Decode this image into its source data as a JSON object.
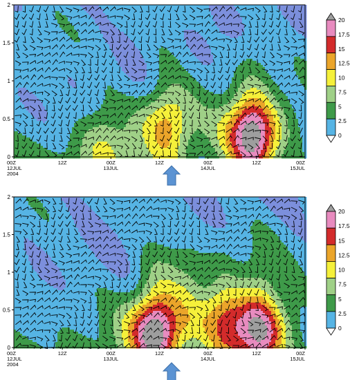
{
  "chart_data": [
    {
      "type": "heatmap",
      "title": "",
      "xlabel": "",
      "ylabel": "",
      "x_range_hours": [
        0,
        72
      ],
      "ylim": [
        0,
        2
      ],
      "x_tick_labels": [
        "00Z\n12JUL\n2004",
        "12Z",
        "00Z\n13JUL",
        "12Z",
        "00Z\n14JUL",
        "12Z",
        "00Z\n15JUL"
      ],
      "x_ticks_hours": [
        0,
        12,
        24,
        36,
        48,
        60,
        72
      ],
      "y_tick_labels": [
        "0",
        "0.5",
        "1",
        "1.5",
        "2"
      ],
      "y_ticks": [
        0,
        0.5,
        1,
        1.5,
        2
      ],
      "colorbar_levels": [
        "0",
        "2.5",
        "5",
        "7.5",
        "10",
        "12.5",
        "15",
        "17.5",
        "20"
      ],
      "colorbar_colors": [
        "#7c8fdc",
        "#56b4e4",
        "#3e9a49",
        "#9fd087",
        "#f5f03a",
        "#eba52a",
        "#d32b2b",
        "#e88bbf",
        "#9e9e9e"
      ],
      "arrow_marker_hours": 39,
      "wind_barbs": true,
      "maxima": [
        {
          "x_hours": 59,
          "y": 0.3,
          "value": 17.5
        },
        {
          "x_hours": 38,
          "y": 0.45,
          "value": 11
        },
        {
          "x_hours": 22,
          "y": 0.1,
          "value": 8
        }
      ]
    },
    {
      "type": "heatmap",
      "title": "",
      "xlabel": "",
      "ylabel": "",
      "x_range_hours": [
        0,
        72
      ],
      "ylim": [
        0,
        2
      ],
      "x_tick_labels": [
        "00Z\n12JUL\n2004",
        "12Z",
        "00Z\n13JUL",
        "12Z",
        "00Z\n14JUL",
        "12Z",
        "00Z\n15JUL"
      ],
      "x_ticks_hours": [
        0,
        12,
        24,
        36,
        48,
        60,
        72
      ],
      "y_tick_labels": [
        "0",
        "0.5",
        "1",
        "1.5",
        "2"
      ],
      "y_ticks": [
        0,
        0.5,
        1,
        1.5,
        2
      ],
      "colorbar_levels": [
        "0",
        "2.5",
        "5",
        "7.5",
        "10",
        "12.5",
        "15",
        "17.5",
        "20"
      ],
      "colorbar_colors": [
        "#7c8fdc",
        "#56b4e4",
        "#3e9a49",
        "#9fd087",
        "#f5f03a",
        "#eba52a",
        "#d32b2b",
        "#e88bbf",
        "#9e9e9e"
      ],
      "arrow_marker_hours": 39,
      "wind_barbs": true,
      "maxima": [
        {
          "x_hours": 35,
          "y": 0.22,
          "value": 17.5
        },
        {
          "x_hours": 61,
          "y": 0.22,
          "value": 16
        },
        {
          "x_hours": 52,
          "y": 0.35,
          "value": 11
        }
      ]
    }
  ]
}
